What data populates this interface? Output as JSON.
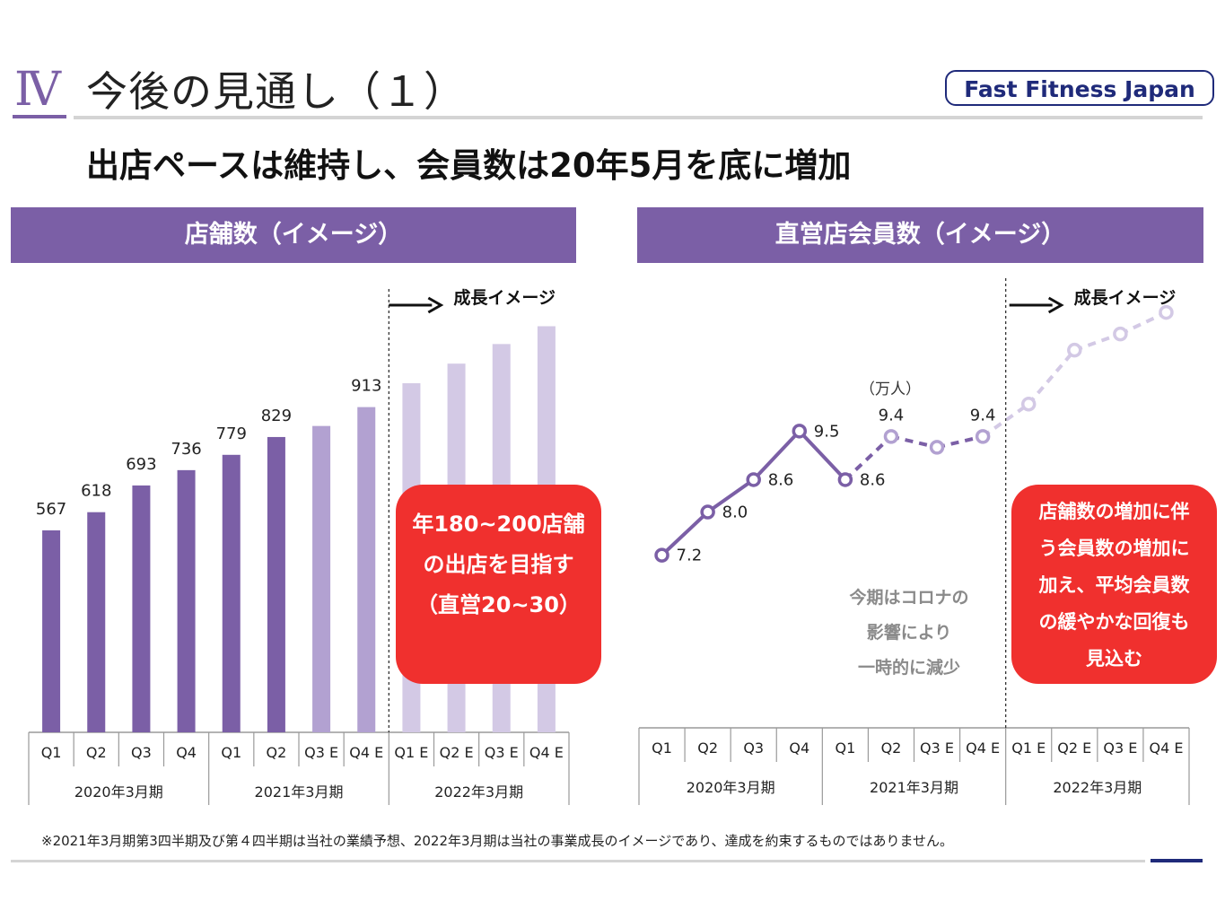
{
  "header": {
    "section_number": "Ⅳ",
    "title": "今後の見通し（１）",
    "logo_text": "Fast Fitness Japan"
  },
  "headline": "出店ペースは維持し、会員数は20年5月を底に増加",
  "colors": {
    "accent": "#7b5fa6",
    "light_bar": "#b2a1d1",
    "faint_bar": "#d3c9e5",
    "callout_red": "#f0302e",
    "navy": "#1f2a7a"
  },
  "chart_data": [
    {
      "type": "bar",
      "title": "店舗数（イメージ）",
      "growth_label": "成長イメージ",
      "categories": [
        "Q1",
        "Q2",
        "Q3",
        "Q4",
        "Q1",
        "Q2",
        "Q3 E",
        "Q4 E",
        "Q1 E",
        "Q2 E",
        "Q3 E",
        "Q4 E"
      ],
      "groups": [
        "2020年3月期",
        "2021年3月期",
        "2022年3月期"
      ],
      "values": [
        567,
        618,
        693,
        736,
        779,
        829,
        860,
        913,
        980,
        1035,
        1090,
        1140
      ],
      "labels": [
        "567",
        "618",
        "693",
        "736",
        "779",
        "829",
        "",
        "913",
        "",
        "",
        "",
        ""
      ],
      "styles": [
        "actual",
        "actual",
        "actual",
        "actual",
        "actual",
        "actual",
        "estimate",
        "estimate",
        "image",
        "image",
        "image",
        "image"
      ],
      "ylim": [
        0,
        1300
      ],
      "callout": [
        "年180~200店舗",
        "の出店を目指す",
        "（直営20~30）"
      ]
    },
    {
      "type": "line",
      "title": "直営店会員数（イメージ）",
      "growth_label": "成長イメージ",
      "unit": "（万人）",
      "categories": [
        "Q1",
        "Q2",
        "Q3",
        "Q4",
        "Q1",
        "Q2",
        "Q3 E",
        "Q4 E",
        "Q1 E",
        "Q2 E",
        "Q3 E",
        "Q4 E"
      ],
      "groups": [
        "2020年3月期",
        "2021年3月期",
        "2022年3月期"
      ],
      "values": [
        7.2,
        8.0,
        8.6,
        9.5,
        8.6,
        9.4,
        9.2,
        9.4,
        10.0,
        11.0,
        11.3,
        11.7
      ],
      "labels": [
        "7.2",
        "8.0",
        "8.6",
        "9.5",
        "8.6",
        "9.4",
        "",
        "9.4",
        "",
        "",
        "",
        ""
      ],
      "styles": [
        "actual",
        "actual",
        "actual",
        "actual",
        "actual",
        "estimate",
        "estimate",
        "estimate",
        "image",
        "image",
        "image",
        "image"
      ],
      "ylim": [
        4,
        12.5
      ],
      "note": [
        "今期はコロナの",
        "影響により",
        "一時的に減少"
      ],
      "callout": [
        "店舗数の増加に伴",
        "う会員数の増加に",
        "加え、平均会員数",
        "の緩やかな回復も",
        "見込む"
      ]
    }
  ],
  "footnote": "※2021年3月期第3四半期及び第４四半期は当社の業績予想、2022年3月期は当社の事業成長のイメージであり、達成を約束するものではありません。"
}
